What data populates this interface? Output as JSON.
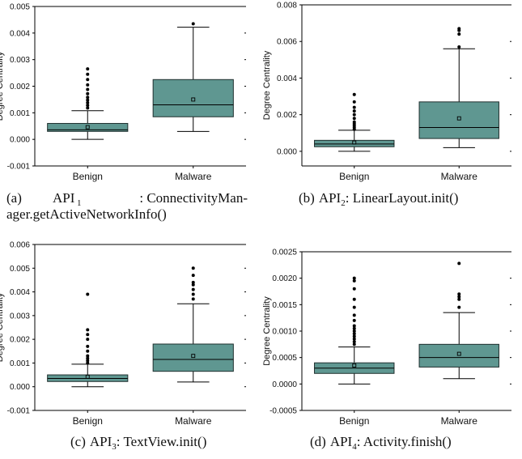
{
  "chart_data": [
    {
      "type": "box",
      "ylabel": "Degree Centrality",
      "ylim": [
        -0.001,
        0.005
      ],
      "yticks": [
        "-0.001",
        "0.000",
        "0.001",
        "0.002",
        "0.003",
        "0.004",
        "0.005"
      ],
      "categories": [
        "Benign",
        "Malware"
      ],
      "boxes": [
        {
          "name": "Benign",
          "whisker_low": 0.0,
          "q1": 0.0003,
          "median": 0.00036,
          "q3": 0.0006,
          "whisker_high": 0.00108,
          "mean": 0.00046,
          "outliers": [
            0.00118,
            0.00128,
            0.00138,
            0.00148,
            0.00158,
            0.00172,
            0.00188,
            0.00205,
            0.00225,
            0.00245,
            0.00265
          ]
        },
        {
          "name": "Malware",
          "whisker_low": 0.0003,
          "q1": 0.00085,
          "median": 0.0013,
          "q3": 0.00225,
          "whisker_high": 0.00422,
          "mean": 0.0015,
          "outliers": [
            0.00435
          ]
        }
      ],
      "caption": {
        "label": "(a)",
        "prefix": "API",
        "sub": "1",
        "line1": ": ConnectivityMan-",
        "line2": "ager.getActiveNetworkInfo()"
      }
    },
    {
      "type": "box",
      "ylabel": "Degree Centrality",
      "ylim": [
        -0.0008,
        0.008
      ],
      "yticks": [
        "0.000",
        "0.002",
        "0.004",
        "0.006",
        "0.008"
      ],
      "categories": [
        "Benign",
        "Malware"
      ],
      "boxes": [
        {
          "name": "Benign",
          "whisker_low": 0.0,
          "q1": 0.00025,
          "median": 0.0004,
          "q3": 0.0006,
          "whisker_high": 0.00115,
          "mean": 0.00048,
          "outliers": [
            0.0012,
            0.0013,
            0.0014,
            0.0015,
            0.0016,
            0.0018,
            0.002,
            0.0022,
            0.0024,
            0.0027,
            0.0031
          ]
        },
        {
          "name": "Malware",
          "whisker_low": 0.0002,
          "q1": 0.0007,
          "median": 0.0013,
          "q3": 0.0027,
          "whisker_high": 0.0056,
          "mean": 0.0018,
          "outliers": [
            0.0057,
            0.0064,
            0.0066,
            0.0067
          ]
        }
      ],
      "caption": {
        "label": "(b)",
        "prefix": "API",
        "sub": "2",
        "line1": ": LinearLayout.init()",
        "line2": ""
      }
    },
    {
      "type": "box",
      "ylabel": "Degree Centrality",
      "ylim": [
        -0.001,
        0.006
      ],
      "yticks": [
        "-0.001",
        "0.000",
        "0.001",
        "0.002",
        "0.003",
        "0.004",
        "0.005",
        "0.006"
      ],
      "categories": [
        "Benign",
        "Malware"
      ],
      "boxes": [
        {
          "name": "Benign",
          "whisker_low": 0.0,
          "q1": 0.00022,
          "median": 0.00035,
          "q3": 0.0005,
          "whisker_high": 0.00095,
          "mean": 0.00042,
          "outliers": [
            0.001,
            0.0011,
            0.0012,
            0.0013,
            0.0015,
            0.0017,
            0.002,
            0.0022,
            0.0024,
            0.0039
          ]
        },
        {
          "name": "Malware",
          "whisker_low": 0.0002,
          "q1": 0.00065,
          "median": 0.00115,
          "q3": 0.0018,
          "whisker_high": 0.0035,
          "mean": 0.0013,
          "outliers": [
            0.0037,
            0.0039,
            0.0041,
            0.0043,
            0.0044,
            0.0047,
            0.005
          ]
        }
      ],
      "caption": {
        "label": "(c)",
        "prefix": "API",
        "sub": "3",
        "line1": ": TextView.init()",
        "line2": ""
      }
    },
    {
      "type": "box",
      "ylabel": "Degree Centrality",
      "ylim": [
        -0.0005,
        0.0025
      ],
      "yticks": [
        "-0.0005",
        "0.0000",
        "0.0005",
        "0.0010",
        "0.0015",
        "0.0020",
        "0.0025"
      ],
      "categories": [
        "Benign",
        "Malware"
      ],
      "boxes": [
        {
          "name": "Benign",
          "whisker_low": 0.0,
          "q1": 0.0002,
          "median": 0.0003,
          "q3": 0.0004,
          "whisker_high": 0.0007,
          "mean": 0.00035,
          "outliers": [
            0.00075,
            0.0008,
            0.00085,
            0.0009,
            0.00095,
            0.001,
            0.00105,
            0.0011,
            0.0012,
            0.0013,
            0.00145,
            0.0016,
            0.0018,
            0.00195,
            0.002
          ]
        },
        {
          "name": "Malware",
          "whisker_low": 0.0001,
          "q1": 0.00032,
          "median": 0.0005,
          "q3": 0.00075,
          "whisker_high": 0.00135,
          "mean": 0.00057,
          "outliers": [
            0.00145,
            0.0016,
            0.00165,
            0.0017,
            0.00228
          ]
        }
      ],
      "caption": {
        "label": "(d)",
        "prefix": "API",
        "sub": "4",
        "line1": ": Activity.finish()",
        "line2": ""
      }
    }
  ],
  "colors": {
    "box_fill": "#5f9791",
    "box_stroke": "#1f2f2e",
    "axis": "#000000",
    "outlier": "#000000"
  }
}
